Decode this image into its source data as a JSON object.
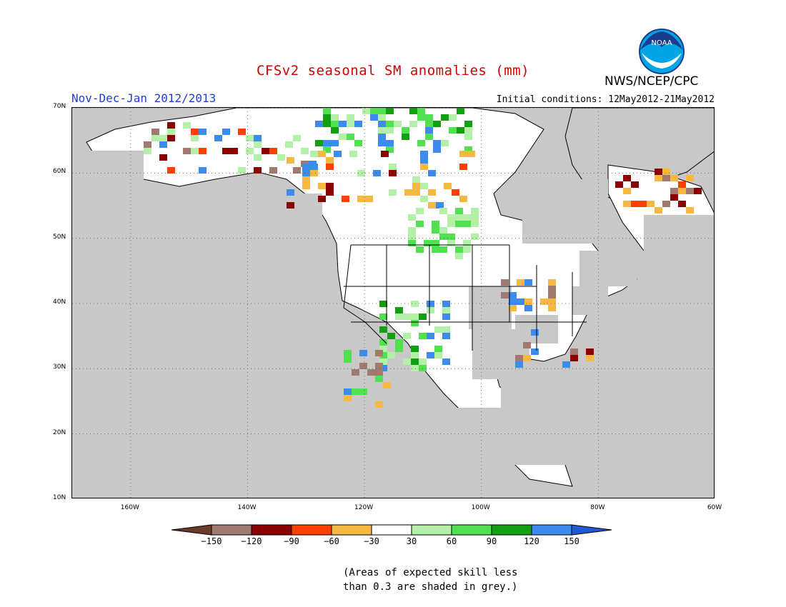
{
  "title": "CFSv2 seasonal SM anomalies (mm)",
  "agency": "NWS/NCEP/CPC",
  "logo_text": "NOAA",
  "period": "Nov-Dec-Jan 2012/2013",
  "initial_conditions": "Initial conditions: 12May2012-21May2012",
  "colors": {
    "title": "#d40000",
    "period": "#1f3fd6",
    "skill_mask": "#c8c8c8",
    "land_neutral": "#ffffff"
  },
  "axes": {
    "lat_labels": [
      "70N",
      "60N",
      "50N",
      "40N",
      "30N",
      "20N",
      "10N"
    ],
    "lat_values": [
      70,
      60,
      50,
      40,
      30,
      20,
      10
    ],
    "lon_labels": [
      "160W",
      "140W",
      "120W",
      "100W",
      "80W",
      "60W"
    ],
    "lon_values": [
      -160,
      -140,
      -120,
      -100,
      -80,
      -60
    ],
    "lon_range": [
      -170,
      -60
    ],
    "lat_range": [
      10,
      70
    ]
  },
  "colorbar": {
    "ticks": [
      "−150",
      "−120",
      "−90",
      "−60",
      "−30",
      "30",
      "60",
      "90",
      "120",
      "150"
    ],
    "colors": [
      "#6b3a2a",
      "#a07a6e",
      "#8b0000",
      "#ff4000",
      "#f5b942",
      "#ffffff",
      "#b4f0a8",
      "#50e050",
      "#12a012",
      "#3c8cf0",
      "#1e5ad2"
    ]
  },
  "note_lines": [
    "(Areas of expected skill less",
    "than 0.3 are shaded in grey.)"
  ],
  "anomaly_regions": [
    {
      "label": "northern Canada",
      "color": "#50e050"
    },
    {
      "label": "Hudson Bay / northern Quebec",
      "color": "#f5b942"
    },
    {
      "label": "Labrador",
      "color": "#8b0000"
    },
    {
      "label": "Rockies / Great Plains",
      "color": "#50e050"
    },
    {
      "label": "Midwest",
      "color": "#f5b942"
    }
  ]
}
